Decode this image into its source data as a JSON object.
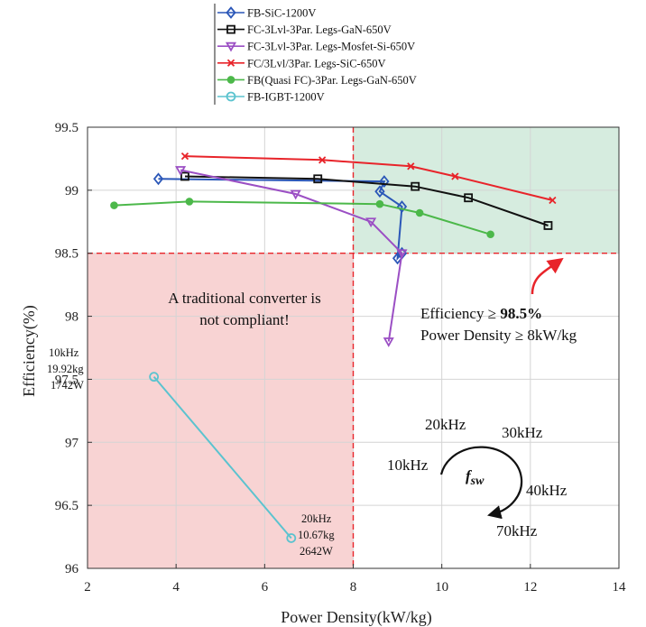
{
  "chart_data": {
    "type": "line",
    "xlabel": "Power Density(kW/kg)",
    "ylabel": "Efficiency(%)",
    "xlim": [
      2,
      14
    ],
    "ylim": [
      96,
      99.5
    ],
    "x_ticks": [
      2,
      4,
      6,
      8,
      10,
      12,
      14
    ],
    "y_ticks": [
      96,
      96.5,
      97,
      97.5,
      98,
      98.5,
      99,
      99.5
    ],
    "grid": true,
    "legend_position": "top-center (outside plot)",
    "series": [
      {
        "name": "FB-SiC-1200V",
        "color": "#2b57b8",
        "marker": "diamond",
        "x": [
          3.6,
          8.7,
          8.6,
          9.1,
          9.0,
          9.1
        ],
        "y": [
          99.09,
          99.07,
          98.99,
          98.87,
          98.46,
          98.5
        ]
      },
      {
        "name": "FC-3Lvl-3Par. Legs-GaN-650V",
        "color": "#111111",
        "marker": "square",
        "x": [
          4.2,
          7.2,
          9.4,
          10.6,
          12.4
        ],
        "y": [
          99.11,
          99.09,
          99.03,
          98.94,
          98.72
        ]
      },
      {
        "name": "FC-3Lvl-3Par. Legs-Mosfet-Si-650V",
        "color": "#9b4fc4",
        "marker": "triangle-down",
        "x": [
          4.1,
          6.7,
          8.4,
          9.1,
          8.8
        ],
        "y": [
          99.16,
          98.97,
          98.75,
          98.5,
          97.8
        ]
      },
      {
        "name": "FC/3Lvl/3Par. Legs-SiC-650V",
        "color": "#e8242a",
        "marker": "x",
        "x": [
          4.2,
          7.3,
          9.3,
          10.3,
          12.5
        ],
        "y": [
          99.27,
          99.24,
          99.19,
          99.11,
          98.92
        ]
      },
      {
        "name": "FB(Quasi FC)-3Par. Legs-GaN-650V",
        "color": "#4cb84a",
        "marker": "circle",
        "x": [
          2.6,
          4.3,
          8.6,
          9.5,
          11.1
        ],
        "y": [
          98.88,
          98.91,
          98.89,
          98.82,
          98.65
        ]
      },
      {
        "name": "FB-IGBT-1200V",
        "color": "#5bc3cf",
        "marker": "open-circle",
        "x": [
          3.5,
          6.6
        ],
        "y": [
          97.52,
          96.24
        ]
      }
    ],
    "regions": [
      {
        "name": "compliant",
        "color": "#d6ecdf",
        "x": [
          8,
          14
        ],
        "y": [
          98.5,
          99.5
        ]
      },
      {
        "name": "non-compliant",
        "color": "#f8d3d3",
        "x": [
          2,
          8
        ],
        "y": [
          96,
          98.5
        ]
      }
    ],
    "thresholds": {
      "x": 8,
      "y": 98.5,
      "color": "#e8242a"
    },
    "annotations": {
      "traditional_line1": "A traditional converter is",
      "traditional_line2": "not compliant!",
      "efficiency_prefix": "Efficiency ≥ ",
      "efficiency_value": "98.5%",
      "density_text": "Power Density ≥ 8kW/kg",
      "igbt_low": [
        "10kHz",
        "19.92kg",
        "1742W"
      ],
      "igbt_high": [
        "20kHz",
        "10.67kg",
        "2642W"
      ],
      "freq_labels": [
        "20kHz",
        "30kHz",
        "10kHz",
        "40kHz",
        "70kHz"
      ],
      "fsw_main": "f",
      "fsw_sub": "sw"
    }
  }
}
